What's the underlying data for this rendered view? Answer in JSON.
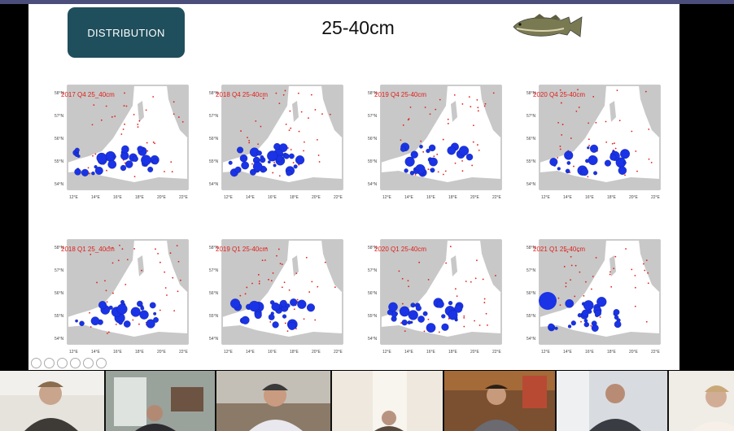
{
  "slide": {
    "badge": "DISTRIBUTION",
    "title": "25-40cm",
    "fish_icon": "cod-fish-icon"
  },
  "maps": [
    {
      "label": "2017 Q4 25_40cm",
      "x_ticks": [
        "12°E",
        "14°E",
        "16°E",
        "18°E",
        "20°E",
        "22°E"
      ],
      "y_ticks": [
        "54°N",
        "55°N",
        "56°N",
        "57°N",
        "58°N"
      ]
    },
    {
      "label": "2018 Q4 25-40cm",
      "x_ticks": [
        "12°E",
        "14°E",
        "16°E",
        "18°E",
        "20°E",
        "22°E"
      ],
      "y_ticks": [
        "54°N",
        "55°N",
        "56°N",
        "57°N",
        "58°N"
      ]
    },
    {
      "label": "2019 Q4 25-40cm",
      "x_ticks": [
        "12°E",
        "14°E",
        "16°E",
        "18°E",
        "20°E",
        "22°E"
      ],
      "y_ticks": [
        "54°N",
        "55°N",
        "56°N",
        "57°N",
        "58°N"
      ]
    },
    {
      "label": "2020 Q4 25-40cm",
      "x_ticks": [
        "12°E",
        "14°E",
        "16°E",
        "18°E",
        "20°E",
        "22°E"
      ],
      "y_ticks": [
        "54°N",
        "55°N",
        "56°N",
        "57°N",
        "58°N"
      ]
    },
    {
      "label": "2018 Q1 25_40cm",
      "x_ticks": [
        "12°E",
        "14°E",
        "16°E",
        "18°E",
        "20°E",
        "22°E"
      ],
      "y_ticks": [
        "54°N",
        "55°N",
        "56°N",
        "57°N",
        "58°N"
      ]
    },
    {
      "label": "2019 Q1 25-40cm",
      "x_ticks": [
        "12°E",
        "14°E",
        "16°E",
        "18°E",
        "20°E",
        "22°E"
      ],
      "y_ticks": [
        "54°N",
        "55°N",
        "56°N",
        "57°N",
        "58°N"
      ]
    },
    {
      "label": "2020 Q1 25-40cm",
      "x_ticks": [
        "12°E",
        "14°E",
        "16°E",
        "18°E",
        "20°E",
        "22°E"
      ],
      "y_ticks": [
        "54°N",
        "55°N",
        "56°N",
        "57°N",
        "58°N"
      ]
    },
    {
      "label": "2021 Q1 25-40cm",
      "x_ticks": [
        "12°E",
        "14°E",
        "16°E",
        "18°E",
        "20°E",
        "22°E"
      ],
      "y_ticks": [
        "54°N",
        "55°N",
        "56°N",
        "57°N",
        "58°N"
      ]
    }
  ],
  "participants": [
    {
      "icon": "participant-video"
    },
    {
      "icon": "participant-video"
    },
    {
      "icon": "participant-video"
    },
    {
      "icon": "participant-video"
    },
    {
      "icon": "participant-video"
    },
    {
      "icon": "participant-video"
    },
    {
      "icon": "participant-video"
    }
  ],
  "colors": {
    "land": "#c8c8c8",
    "bubble": "#1a33e6",
    "dot": "#e0201a",
    "badge": "#1f4e5c"
  }
}
